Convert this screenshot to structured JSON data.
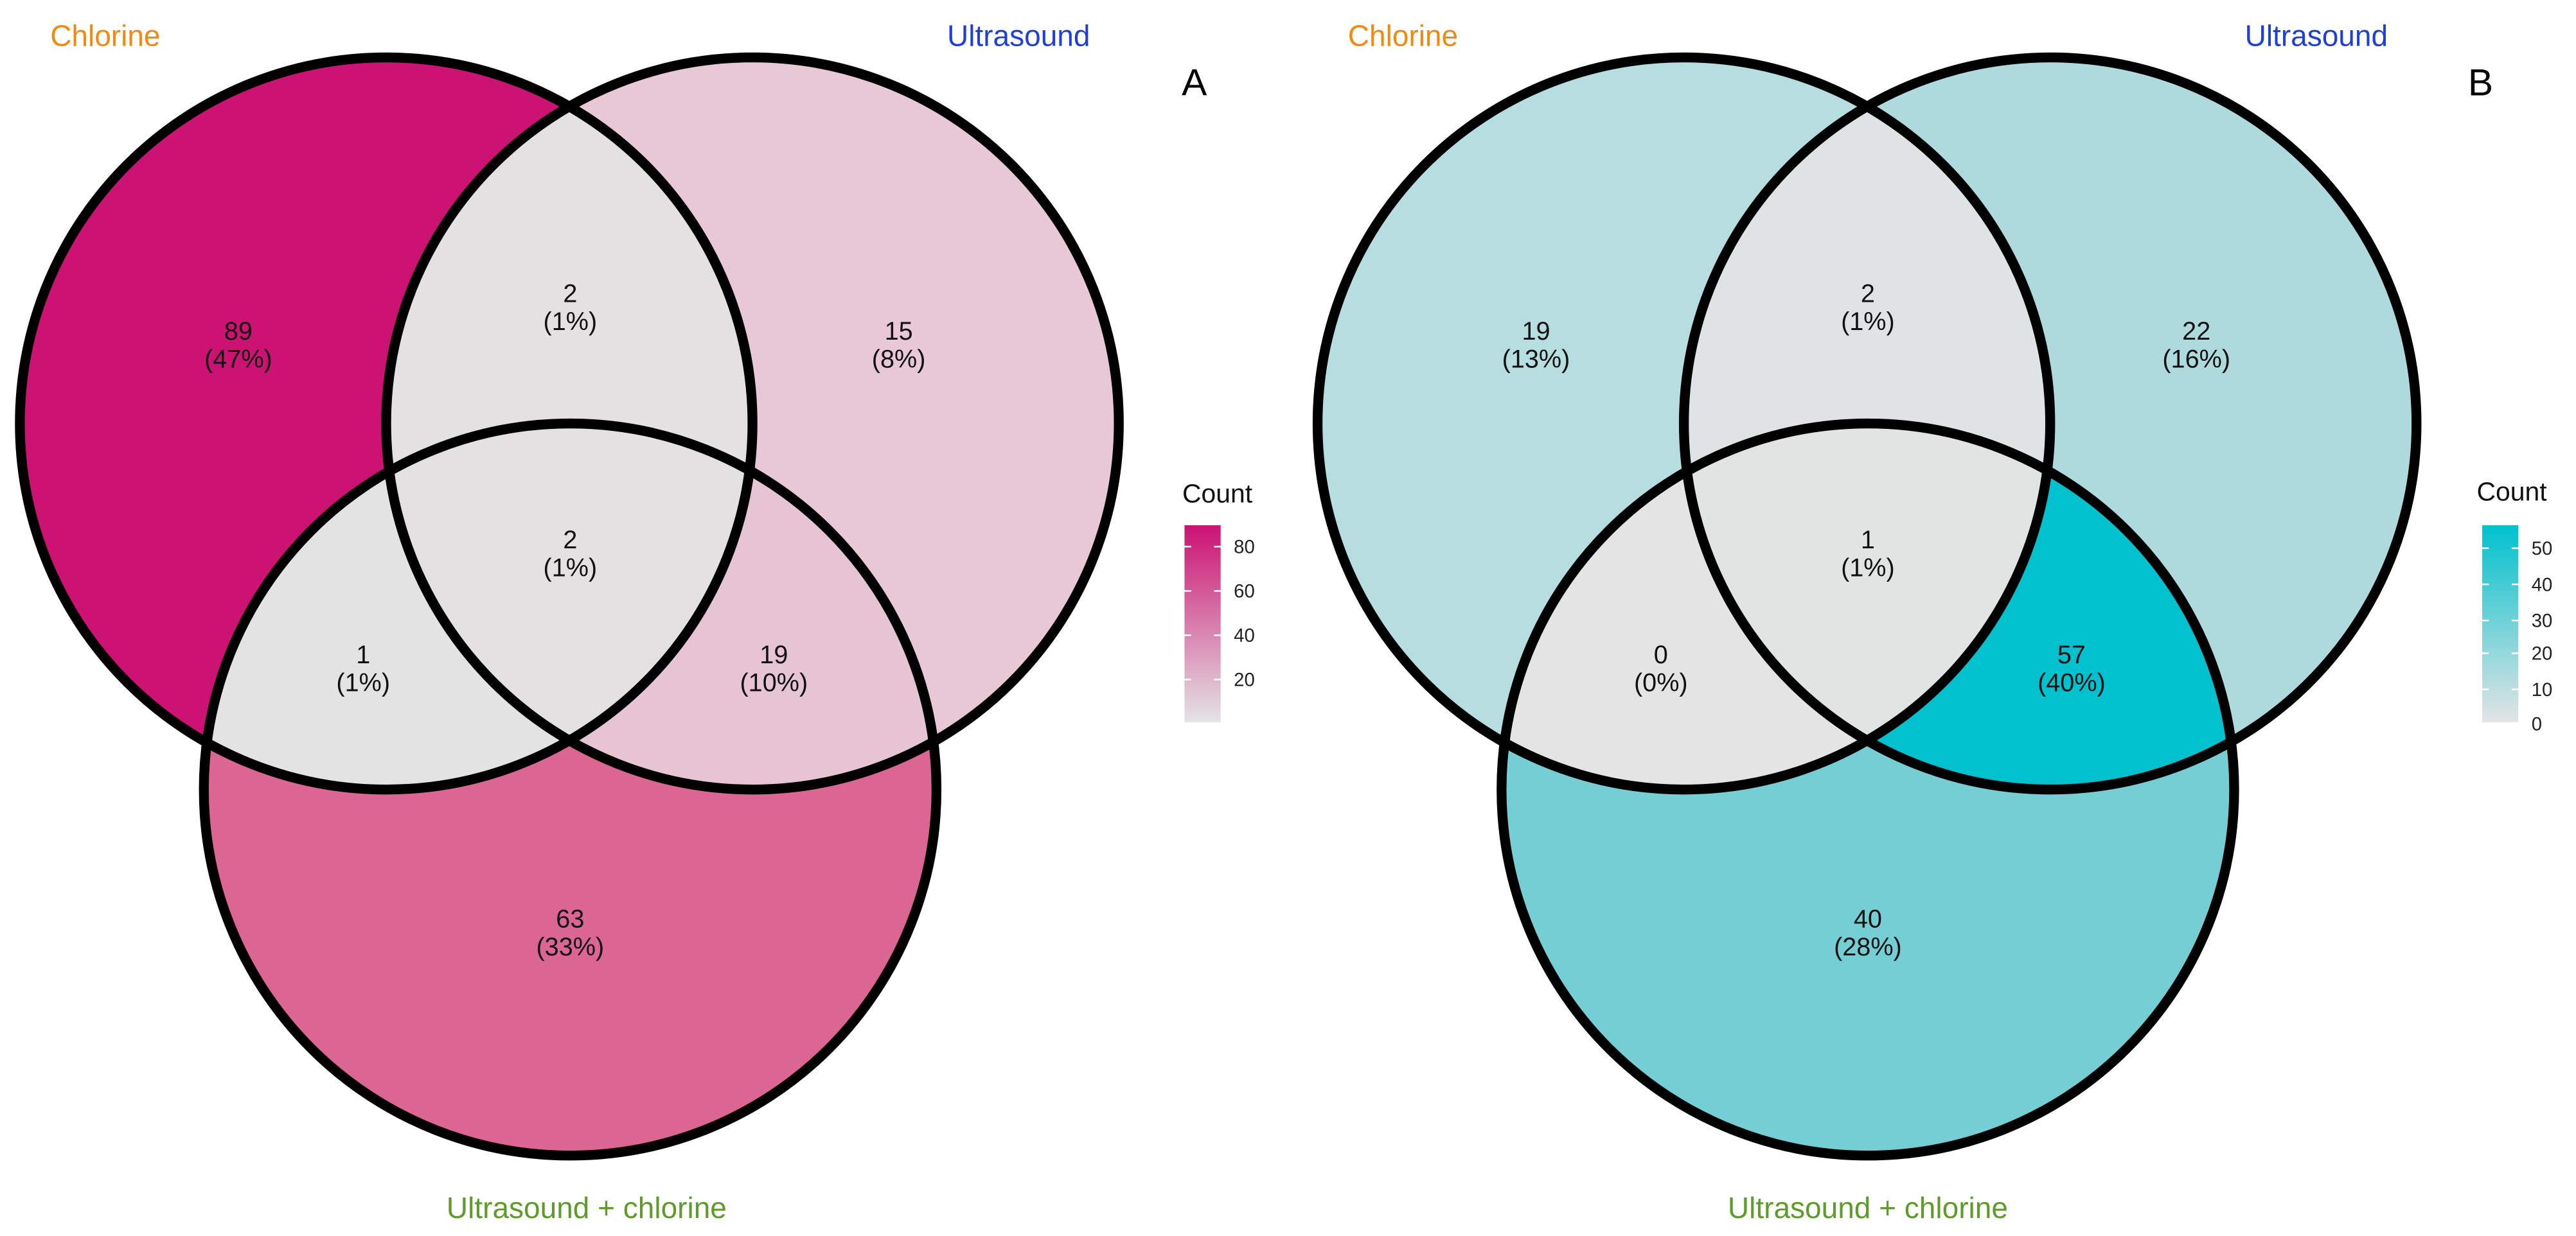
{
  "set_names": [
    "Chlorine",
    "Ultrasound",
    "Ultrasound + chlorine"
  ],
  "set_label_colors": [
    "#f28a12",
    "#1f3fd9",
    "#5e9b2a"
  ],
  "panels": [
    {
      "letter": "A",
      "legend_title": "Count",
      "legend_ticks": [
        "80",
        "60",
        "40",
        "20"
      ],
      "scale_low_color": "#e4e4e4",
      "scale_high_color": "#cc1273",
      "regions": {
        "chlorine_only": {
          "count": "89",
          "pct": "(47%)",
          "fill": "#cc1273"
        },
        "chlorine_ultrasound": {
          "count": "2",
          "pct": "(1%)",
          "fill": "#e4e1e3"
        },
        "ultrasound_only": {
          "count": "15",
          "pct": "(8%)",
          "fill": "#e8c8d4"
        },
        "chlorine_combo": {
          "count": "1",
          "pct": "(1%)",
          "fill": "#e4e3e4"
        },
        "all_three": {
          "count": "2",
          "pct": "(1%)",
          "fill": "#e4e1e3"
        },
        "ultrasound_combo": {
          "count": "19",
          "pct": "(10%)",
          "fill": "#e6c4d2"
        },
        "combo_only": {
          "count": "63",
          "pct": "(33%)",
          "fill": "#db6694"
        }
      }
    },
    {
      "letter": "B",
      "legend_title": "Count",
      "legend_ticks": [
        "50",
        "40",
        "30",
        "20",
        "10",
        "0"
      ],
      "scale_low_color": "#e4e4e4",
      "scale_high_color": "#00c1cd",
      "regions": {
        "chlorine_only": {
          "count": "19",
          "pct": "(13%)",
          "fill": "#b6dde0"
        },
        "chlorine_ultrasound": {
          "count": "2",
          "pct": "(1%)",
          "fill": "#e0e3e4"
        },
        "ultrasound_only": {
          "count": "22",
          "pct": "(16%)",
          "fill": "#aedadd"
        },
        "chlorine_combo": {
          "count": "0",
          "pct": "(0%)",
          "fill": "#e4e4e4"
        },
        "all_three": {
          "count": "1",
          "pct": "(1%)",
          "fill": "#e2e4e4"
        },
        "ultrasound_combo": {
          "count": "57",
          "pct": "(40%)",
          "fill": "#00c1cd"
        },
        "combo_only": {
          "count": "40",
          "pct": "(28%)",
          "fill": "#76ced5"
        }
      }
    }
  ]
}
